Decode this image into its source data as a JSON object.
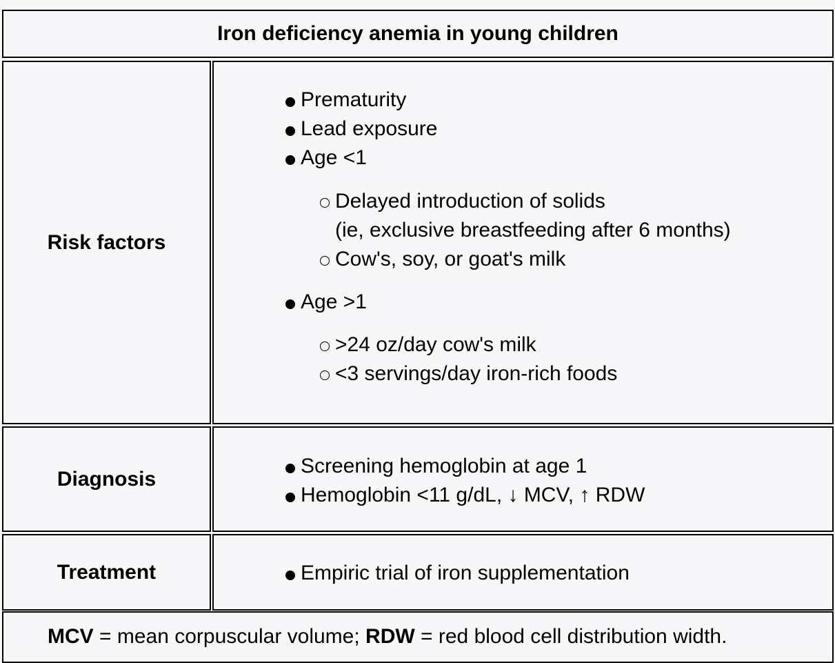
{
  "title": "Iron deficiency anemia in young children",
  "risk": {
    "label": "Risk factors",
    "items": [
      "Prematurity",
      "Lead exposure",
      "Age <1"
    ],
    "age_lt1_sub": [
      "Delayed introduction of solids",
      "(ie, exclusive breastfeeding after 6 months)",
      "Cow's, soy, or goat's milk"
    ],
    "age_gt1": "Age >1",
    "age_gt1_sub": [
      ">24 oz/day cow's milk",
      "<3 servings/day iron-rich foods"
    ]
  },
  "diagnosis": {
    "label": "Diagnosis",
    "items": [
      "Screening hemoglobin at age 1",
      "Hemoglobin <11 g/dL, ↓ MCV, ↑ RDW"
    ]
  },
  "treatment": {
    "label": "Treatment",
    "items": [
      "Empiric trial of iron supplementation"
    ]
  },
  "footer": {
    "mcv_abbr": "MCV",
    "mcv_def": " = mean corpuscular volume; ",
    "rdw_abbr": "RDW",
    "rdw_def": " = red blood cell distribution width."
  }
}
